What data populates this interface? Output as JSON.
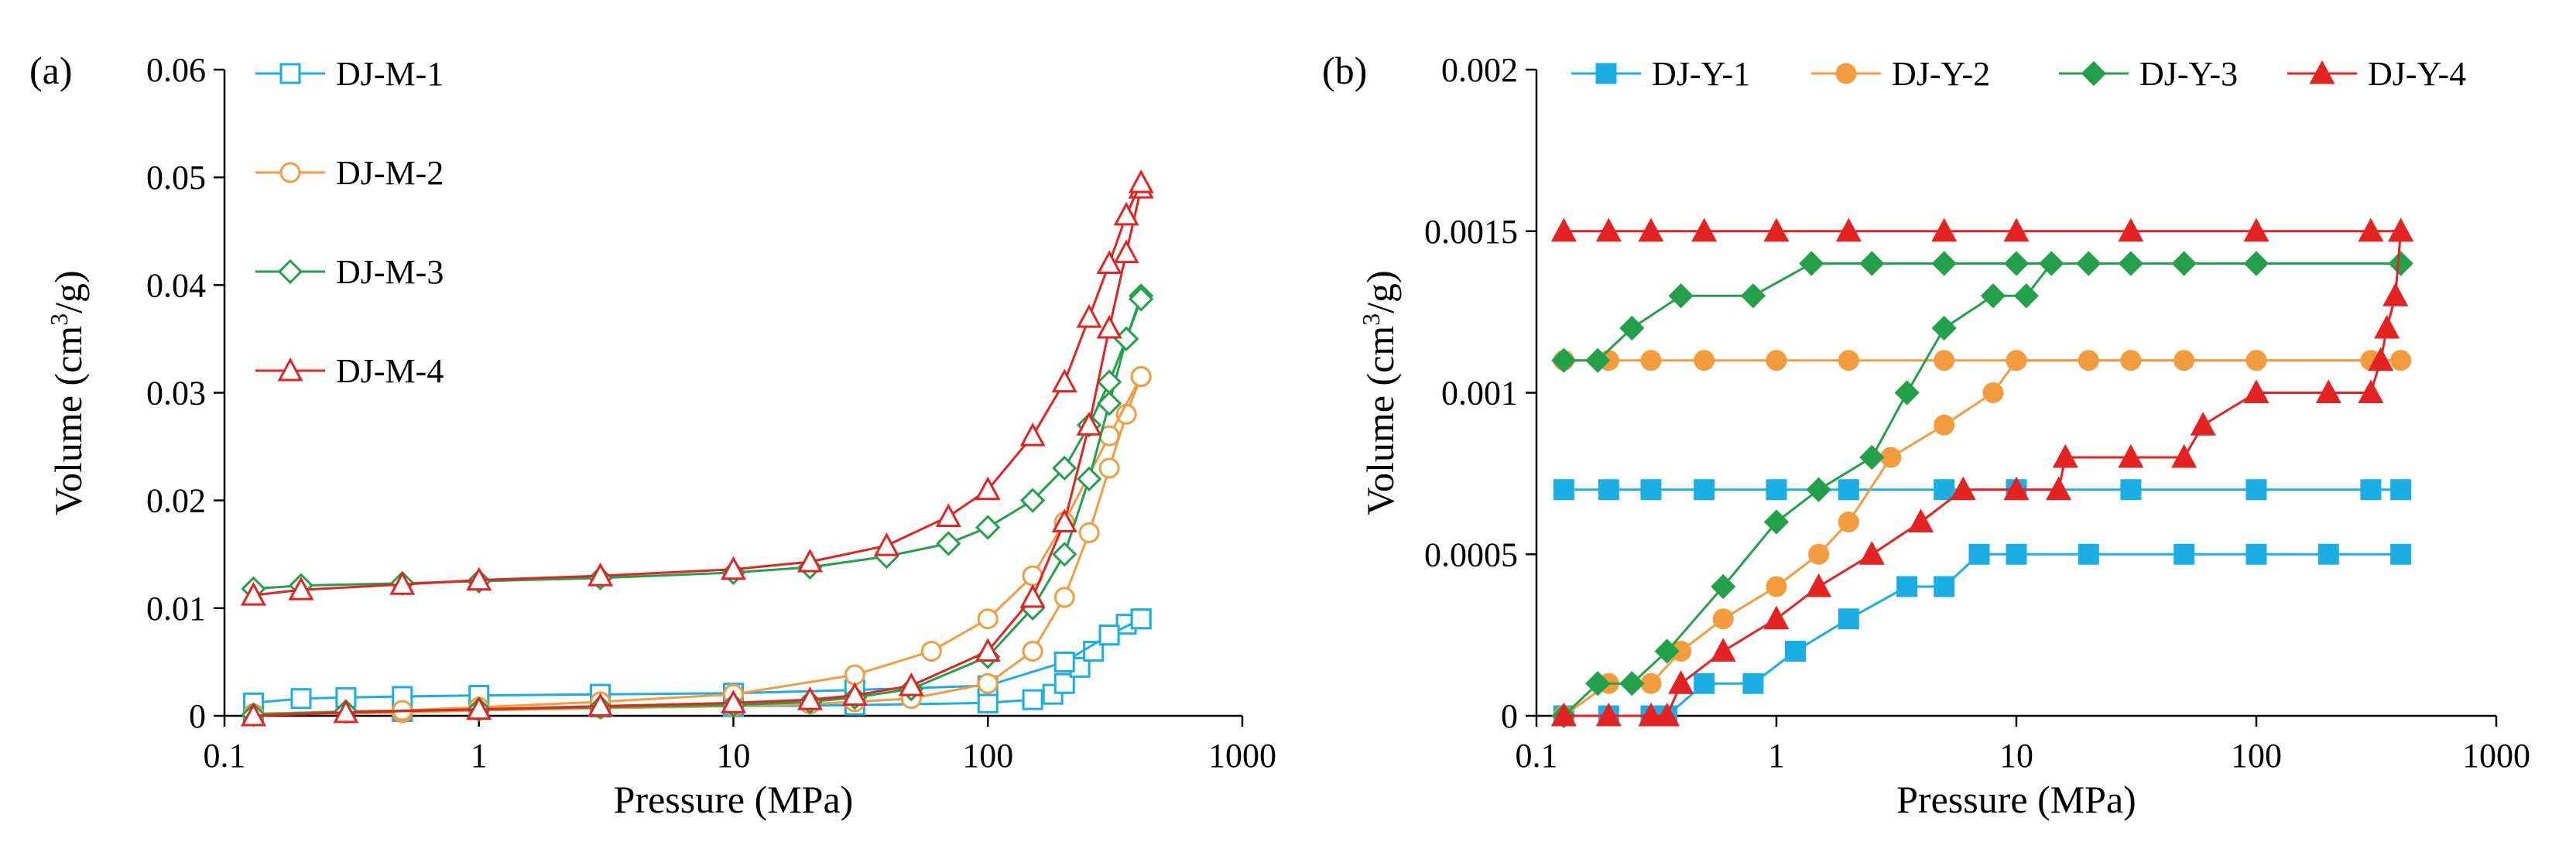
{
  "chart_data": [
    {
      "panel": "(a)",
      "type": "line",
      "x_scale": "log",
      "xlabel": "Pressure (MPa)",
      "ylabel": "Volume (cm3/g)",
      "ylabel_parts": {
        "pre": "Volume (cm",
        "sup": "3",
        "post": "/g)"
      },
      "xlim": [
        0.1,
        1000
      ],
      "ylim": [
        0,
        0.06
      ],
      "x_ticks": [
        0.1,
        1,
        10,
        100,
        1000
      ],
      "x_tick_labels": [
        "0.1",
        "1",
        "10",
        "100",
        "1000"
      ],
      "y_ticks": [
        0,
        0.01,
        0.02,
        0.03,
        0.04,
        0.05,
        0.06
      ],
      "y_tick_labels": [
        "0",
        "0.01",
        "0.02",
        "0.03",
        "0.04",
        "0.05",
        "0.06"
      ],
      "legend_position": "top-left",
      "series": [
        {
          "name": "DJ-M-1",
          "color": "#1aaee5",
          "marker": "square-open",
          "intrusion": {
            "x": [
              0.13,
              0.5,
              1,
              3,
              10,
              30,
              100,
              150,
              180,
              200,
              230,
              260,
              300,
              350,
              400
            ],
            "y": [
              0.0002,
              0.0004,
              0.0006,
              0.0008,
              0.0009,
              0.001,
              0.0012,
              0.0015,
              0.002,
              0.003,
              0.0045,
              0.006,
              0.0075,
              0.0085,
              0.009
            ]
          },
          "extrusion": {
            "x": [
              0.13,
              0.2,
              0.3,
              0.5,
              1,
              3,
              10,
              30,
              100,
              200,
              300,
              400
            ],
            "y": [
              0.0012,
              0.0016,
              0.0017,
              0.0018,
              0.0019,
              0.002,
              0.0021,
              0.0024,
              0.0028,
              0.005,
              0.0075,
              0.009
            ]
          }
        },
        {
          "name": "DJ-M-2",
          "color": "#f39c3e",
          "marker": "circle-open",
          "intrusion": {
            "x": [
              0.13,
              0.5,
              1,
              3,
              10,
              20,
              30,
              50,
              100,
              150,
              200,
              250,
              300,
              350,
              400
            ],
            "y": [
              0.0001,
              0.0003,
              0.0005,
              0.0007,
              0.0009,
              0.0011,
              0.0013,
              0.0016,
              0.003,
              0.006,
              0.011,
              0.017,
              0.023,
              0.028,
              0.0315
            ]
          },
          "extrusion": {
            "x": [
              0.13,
              0.5,
              1,
              3,
              10,
              30,
              60,
              100,
              150,
              200,
              300,
              400
            ],
            "y": [
              0.0002,
              0.0005,
              0.0008,
              0.0013,
              0.002,
              0.0038,
              0.006,
              0.009,
              0.013,
              0.018,
              0.026,
              0.0315
            ]
          }
        },
        {
          "name": "DJ-M-3",
          "color": "#22a04a",
          "marker": "diamond-open",
          "intrusion": {
            "x": [
              0.13,
              0.3,
              1,
              3,
              10,
              20,
              30,
              50,
              100,
              150,
              200,
              250,
              300,
              350,
              400
            ],
            "y": [
              0.0001,
              0.0004,
              0.0006,
              0.0008,
              0.001,
              0.0013,
              0.0017,
              0.0025,
              0.0055,
              0.01,
              0.015,
              0.022,
              0.029,
              0.035,
              0.039
            ]
          },
          "extrusion": {
            "x": [
              0.13,
              0.2,
              0.5,
              1,
              3,
              10,
              20,
              40,
              70,
              100,
              150,
              200,
              250,
              300,
              350,
              400
            ],
            "y": [
              0.0118,
              0.0121,
              0.0123,
              0.0125,
              0.0128,
              0.0133,
              0.0138,
              0.0148,
              0.016,
              0.0175,
              0.02,
              0.023,
              0.027,
              0.031,
              0.035,
              0.0387
            ]
          }
        },
        {
          "name": "DJ-M-4",
          "color": "#e52222",
          "marker": "triangle-open",
          "intrusion": {
            "x": [
              0.13,
              0.3,
              1,
              3,
              10,
              20,
              30,
              50,
              100,
              150,
              200,
              250,
              300,
              350,
              400
            ],
            "y": [
              0,
              0.0003,
              0.0006,
              0.0009,
              0.0012,
              0.0015,
              0.0019,
              0.0028,
              0.006,
              0.011,
              0.018,
              0.027,
              0.036,
              0.043,
              0.049
            ]
          },
          "extrusion": {
            "x": [
              0.13,
              0.2,
              0.5,
              1,
              3,
              10,
              20,
              40,
              70,
              100,
              150,
              200,
              250,
              300,
              350,
              400
            ],
            "y": [
              0.0112,
              0.0117,
              0.0122,
              0.0126,
              0.013,
              0.0136,
              0.0143,
              0.0158,
              0.0185,
              0.021,
              0.026,
              0.031,
              0.037,
              0.042,
              0.0465,
              0.0495
            ]
          }
        }
      ]
    },
    {
      "panel": "(b)",
      "type": "line",
      "x_scale": "log",
      "xlabel": "Pressure (MPa)",
      "ylabel": "Volume (cm3/g)",
      "ylabel_parts": {
        "pre": "Volume (cm",
        "sup": "3",
        "post": "/g)"
      },
      "xlim": [
        0.1,
        1000
      ],
      "ylim": [
        0,
        0.002
      ],
      "x_ticks": [
        0.1,
        1,
        10,
        100,
        1000
      ],
      "x_tick_labels": [
        "0.1",
        "1",
        "10",
        "100",
        "1000"
      ],
      "y_ticks": [
        0,
        0.0005,
        0.001,
        0.0015,
        0.002
      ],
      "y_tick_labels": [
        "0",
        "0.0005",
        "0.001",
        "0.0015",
        "0.002"
      ],
      "legend_position": "top",
      "series": [
        {
          "name": "DJ-Y-1",
          "color": "#1aaee5",
          "marker": "square-filled",
          "intrusion": {
            "x": [
              0.13,
              0.2,
              0.3,
              0.35,
              0.5,
              0.8,
              1.2,
              2,
              3.5,
              5,
              7,
              10,
              20,
              50,
              100,
              200,
              400
            ],
            "y": [
              0,
              0,
              0,
              0,
              0.0001,
              0.0001,
              0.0002,
              0.0003,
              0.0004,
              0.0004,
              0.0005,
              0.0005,
              0.0005,
              0.0005,
              0.0005,
              0.0005,
              0.0005
            ]
          },
          "extrusion": {
            "x": [
              0.13,
              0.2,
              0.3,
              0.5,
              1,
              2,
              5,
              10,
              30,
              100,
              300,
              400
            ],
            "y": [
              0.0007,
              0.0007,
              0.0007,
              0.0007,
              0.0007,
              0.0007,
              0.0007,
              0.0007,
              0.0007,
              0.0007,
              0.0007,
              0.0007
            ]
          }
        },
        {
          "name": "DJ-Y-2",
          "color": "#f39c3e",
          "marker": "circle-filled",
          "intrusion": {
            "x": [
              0.13,
              0.2,
              0.3,
              0.4,
              0.6,
              1,
              1.5,
              2,
              3,
              5,
              8,
              10,
              20,
              50,
              100,
              400
            ],
            "y": [
              0,
              0.0001,
              0.0001,
              0.0002,
              0.0003,
              0.0004,
              0.0005,
              0.0006,
              0.0008,
              0.0009,
              0.001,
              0.0011,
              0.0011,
              0.0011,
              0.0011,
              0.0011
            ]
          },
          "extrusion": {
            "x": [
              0.13,
              0.2,
              0.3,
              0.5,
              1,
              2,
              5,
              10,
              30,
              100,
              300,
              400
            ],
            "y": [
              0.0011,
              0.0011,
              0.0011,
              0.0011,
              0.0011,
              0.0011,
              0.0011,
              0.0011,
              0.0011,
              0.0011,
              0.0011,
              0.0011
            ]
          }
        },
        {
          "name": "DJ-Y-3",
          "color": "#22a04a",
          "marker": "diamond-filled",
          "intrusion": {
            "x": [
              0.13,
              0.18,
              0.25,
              0.35,
              0.6,
              1,
              1.5,
              2.5,
              3.5,
              5,
              8,
              11,
              14,
              20,
              50,
              100,
              400
            ],
            "y": [
              0,
              0.0001,
              0.0001,
              0.0002,
              0.0004,
              0.0006,
              0.0007,
              0.0008,
              0.001,
              0.0012,
              0.0013,
              0.0013,
              0.0014,
              0.0014,
              0.0014,
              0.0014,
              0.0014
            ]
          },
          "extrusion": {
            "x": [
              0.13,
              0.18,
              0.25,
              0.4,
              0.8,
              1.4,
              2.5,
              5,
              10,
              30,
              100,
              400
            ],
            "y": [
              0.0011,
              0.0011,
              0.0012,
              0.0013,
              0.0013,
              0.0014,
              0.0014,
              0.0014,
              0.0014,
              0.0014,
              0.0014,
              0.0014
            ]
          }
        },
        {
          "name": "DJ-Y-4",
          "color": "#e52222",
          "marker": "triangle-filled",
          "intrusion": {
            "x": [
              0.13,
              0.2,
              0.3,
              0.35,
              0.4,
              0.6,
              1,
              1.5,
              2.5,
              4,
              6,
              10,
              15,
              16,
              30,
              50,
              60,
              100,
              200,
              300,
              330,
              350,
              380,
              400
            ],
            "y": [
              0,
              0,
              0,
              0,
              0.0001,
              0.0002,
              0.0003,
              0.0004,
              0.0005,
              0.0006,
              0.0007,
              0.0007,
              0.0007,
              0.0008,
              0.0008,
              0.0008,
              0.0009,
              0.001,
              0.001,
              0.001,
              0.0011,
              0.0012,
              0.0013,
              0.0015
            ]
          },
          "extrusion": {
            "x": [
              0.13,
              0.2,
              0.3,
              0.5,
              1,
              2,
              5,
              10,
              30,
              100,
              300,
              400
            ],
            "y": [
              0.0015,
              0.0015,
              0.0015,
              0.0015,
              0.0015,
              0.0015,
              0.0015,
              0.0015,
              0.0015,
              0.0015,
              0.0015,
              0.0015
            ]
          }
        }
      ]
    }
  ]
}
